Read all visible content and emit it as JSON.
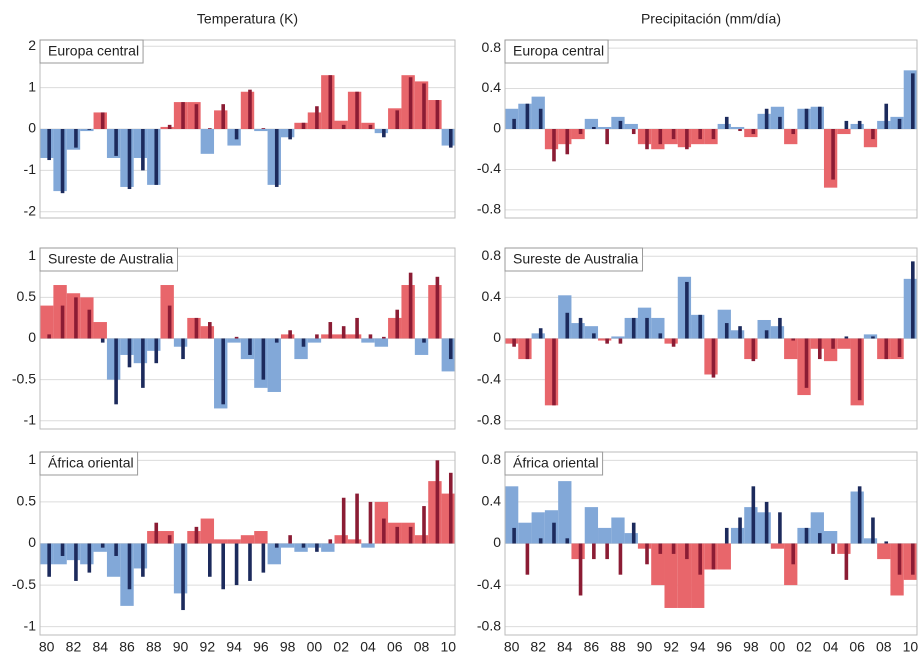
{
  "chart_data": [
    {
      "type": "bar",
      "column_title": "Temperatura (K)",
      "title": "Europa central",
      "ylim": [
        -2.15,
        2.15
      ],
      "yticks": [
        2,
        1,
        0,
        -1,
        -2
      ],
      "grid": true,
      "series": [
        {
          "positive_color": "#e8666b",
          "negative_color": "#82a8d8",
          "values": [
            -0.7,
            -1.5,
            -0.5,
            -0.05,
            0.4,
            -0.7,
            -1.4,
            -0.7,
            -1.35,
            0.05,
            0.65,
            0.65,
            -0.6,
            0.45,
            -0.4,
            0.9,
            -0.05,
            -1.35,
            -0.2,
            0.15,
            0.4,
            1.3,
            0.2,
            0.9,
            0.15,
            -0.1,
            0.5,
            1.3,
            1.15,
            0.7,
            -0.4
          ]
        },
        {
          "positive_color": "#8b1c34",
          "negative_color": "#1c2a5c",
          "values": [
            -0.75,
            -1.55,
            -0.45,
            -0.02,
            0.4,
            -0.65,
            -1.45,
            -1.0,
            -1.35,
            0.1,
            0.65,
            0.6,
            0.02,
            0.6,
            -0.25,
            0.95,
            0.02,
            -1.4,
            -0.25,
            0.15,
            0.55,
            1.3,
            0.1,
            0.9,
            0.1,
            -0.2,
            0.45,
            1.25,
            1.1,
            0.7,
            -0.45
          ]
        }
      ]
    },
    {
      "type": "bar",
      "column_title": "Precipitación (mm/día)",
      "title": "Europa central",
      "ylim": [
        -0.88,
        0.88
      ],
      "yticks": [
        0.8,
        0.4,
        0,
        -0.4,
        -0.8
      ],
      "grid": true,
      "series": [
        {
          "positive_color": "#82a8d8",
          "negative_color": "#e8666b",
          "values": [
            0.2,
            0.25,
            0.32,
            -0.2,
            -0.15,
            -0.1,
            0.1,
            0.02,
            0.12,
            0.05,
            -0.15,
            -0.2,
            -0.15,
            -0.18,
            -0.15,
            -0.15,
            0.05,
            0.02,
            -0.08,
            0.15,
            0.22,
            -0.15,
            0.2,
            0.22,
            -0.58,
            -0.05,
            0.05,
            -0.18,
            0.08,
            0.12,
            0.58
          ]
        },
        {
          "positive_color": "#1c2a5c",
          "negative_color": "#8b1c34",
          "values": [
            0.1,
            0.25,
            0.2,
            -0.32,
            -0.25,
            -0.05,
            0.02,
            -0.15,
            0.08,
            -0.05,
            -0.2,
            -0.15,
            -0.1,
            -0.2,
            -0.1,
            -0.1,
            0.12,
            -0.02,
            -0.05,
            0.2,
            0.12,
            -0.05,
            0.2,
            0.22,
            -0.5,
            0.08,
            0.08,
            -0.1,
            0.25,
            0.1,
            0.55
          ]
        }
      ]
    },
    {
      "type": "bar",
      "title": "Sureste de Australia",
      "ylim": [
        -1.1,
        1.1
      ],
      "yticks": [
        1,
        0.5,
        0,
        -0.5,
        -1
      ],
      "grid": true,
      "series": [
        {
          "positive_color": "#e8666b",
          "negative_color": "#82a8d8",
          "values": [
            0.4,
            0.65,
            0.55,
            0.5,
            0.2,
            -0.5,
            -0.2,
            -0.3,
            -0.15,
            0.65,
            -0.1,
            0.25,
            0.15,
            -0.85,
            -0.05,
            -0.25,
            -0.6,
            -0.65,
            0.05,
            -0.25,
            -0.05,
            0.05,
            0.05,
            0.05,
            -0.05,
            -0.1,
            0.25,
            0.65,
            -0.2,
            0.65,
            -0.4
          ]
        },
        {
          "positive_color": "#8b1c34",
          "negative_color": "#1c2a5c",
          "values": [
            0.05,
            0.4,
            0.5,
            0.35,
            -0.05,
            -0.8,
            -0.35,
            -0.6,
            -0.3,
            0.4,
            -0.25,
            0.25,
            0.2,
            -0.8,
            0.02,
            -0.2,
            -0.5,
            -0.05,
            0.1,
            -0.1,
            0.05,
            0.2,
            0.15,
            0.25,
            0.05,
            0.02,
            0.35,
            0.8,
            -0.05,
            0.75,
            -0.25
          ]
        }
      ]
    },
    {
      "type": "bar",
      "title": "Sureste de Australia",
      "ylim": [
        -0.88,
        0.88
      ],
      "yticks": [
        0.8,
        0.4,
        0,
        -0.4,
        -0.8
      ],
      "grid": true,
      "series": [
        {
          "positive_color": "#82a8d8",
          "negative_color": "#e8666b",
          "values": [
            -0.05,
            -0.2,
            0.05,
            -0.65,
            0.42,
            0.15,
            0.12,
            -0.02,
            0.02,
            0.2,
            0.3,
            0.2,
            -0.05,
            0.6,
            0.23,
            -0.35,
            0.28,
            0.08,
            -0.2,
            0.18,
            0.12,
            -0.2,
            -0.55,
            -0.1,
            -0.22,
            -0.1,
            -0.65,
            0.04,
            -0.2,
            -0.2,
            0.58
          ]
        },
        {
          "positive_color": "#1c2a5c",
          "negative_color": "#8b1c34",
          "values": [
            -0.08,
            -0.2,
            0.1,
            -0.65,
            0.25,
            0.2,
            0.05,
            -0.05,
            -0.05,
            0.2,
            0.2,
            0.05,
            -0.08,
            0.55,
            0.23,
            -0.38,
            0.15,
            0.12,
            -0.22,
            0.08,
            0.2,
            -0.02,
            -0.48,
            -0.2,
            -0.1,
            0.02,
            -0.6,
            0.02,
            -0.2,
            -0.18,
            0.75
          ]
        }
      ]
    },
    {
      "type": "bar",
      "title": "África oriental",
      "ylim": [
        -1.1,
        1.1
      ],
      "yticks": [
        1,
        0.5,
        0,
        -0.5,
        -1
      ],
      "grid": true,
      "categories": [
        "80",
        null,
        "82",
        null,
        "84",
        null,
        "86",
        null,
        "88",
        null,
        "90",
        null,
        "92",
        null,
        "94",
        null,
        "96",
        null,
        "98",
        null,
        "00",
        null,
        "02",
        null,
        "04",
        null,
        "06",
        null,
        "08",
        null,
        "10"
      ],
      "series": [
        {
          "positive_color": "#e8666b",
          "negative_color": "#82a8d8",
          "values": [
            -0.25,
            -0.25,
            -0.2,
            -0.25,
            -0.1,
            -0.4,
            -0.75,
            -0.3,
            0.15,
            0.15,
            -0.6,
            0.15,
            0.3,
            0.05,
            0.05,
            0.1,
            0.15,
            -0.25,
            -0.05,
            -0.1,
            -0.05,
            -0.1,
            0.1,
            0.05,
            -0.05,
            0.5,
            0.25,
            0.25,
            0.1,
            0.75,
            0.6
          ]
        },
        {
          "positive_color": "#8b1c34",
          "negative_color": "#1c2a5c",
          "values": [
            -0.4,
            -0.15,
            -0.45,
            -0.35,
            -0.05,
            -0.15,
            -0.55,
            -0.4,
            0.25,
            0.1,
            -0.8,
            0.2,
            -0.4,
            -0.55,
            -0.5,
            -0.45,
            -0.35,
            -0.05,
            0.1,
            -0.05,
            -0.1,
            0.05,
            0.55,
            0.6,
            0.5,
            0.3,
            0.2,
            0.2,
            0.45,
            1.0,
            0.85
          ]
        }
      ]
    },
    {
      "type": "bar",
      "title": "África oriental",
      "ylim": [
        -0.88,
        0.88
      ],
      "yticks": [
        0.8,
        0.4,
        0,
        -0.4,
        -0.8
      ],
      "grid": true,
      "categories": [
        "80",
        null,
        "82",
        null,
        "84",
        null,
        "86",
        null,
        "88",
        null,
        "90",
        null,
        "92",
        null,
        "94",
        null,
        "96",
        null,
        "98",
        null,
        "00",
        null,
        "02",
        null,
        "04",
        null,
        "06",
        null,
        "08",
        null,
        "10"
      ],
      "series": [
        {
          "positive_color": "#82a8d8",
          "negative_color": "#e8666b",
          "values": [
            0.55,
            0.2,
            0.3,
            0.32,
            0.6,
            -0.15,
            0.35,
            0.15,
            0.25,
            0.1,
            -0.05,
            -0.4,
            -0.62,
            -0.62,
            -0.62,
            -0.25,
            -0.25,
            0.15,
            0.35,
            0.3,
            -0.05,
            -0.4,
            0.15,
            0.3,
            0.12,
            -0.1,
            0.5,
            0.05,
            -0.15,
            -0.5,
            -0.35
          ]
        },
        {
          "positive_color": "#1c2a5c",
          "negative_color": "#8b1c34",
          "values": [
            0.15,
            -0.3,
            0.05,
            0.2,
            0.05,
            -0.5,
            -0.15,
            -0.15,
            -0.3,
            0.2,
            -0.2,
            -0.1,
            -0.1,
            -0.15,
            -0.3,
            -0.25,
            0.15,
            0.25,
            0.55,
            0.4,
            0.3,
            -0.2,
            0.15,
            0.1,
            -0.1,
            -0.35,
            0.55,
            0.25,
            0.02,
            -0.3,
            -0.3
          ]
        }
      ]
    }
  ]
}
